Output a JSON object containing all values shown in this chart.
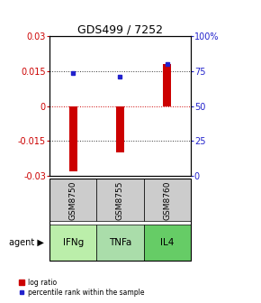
{
  "title": "GDS499 / 7252",
  "categories": [
    "IFNg",
    "TNFa",
    "IL4"
  ],
  "gsm_labels": [
    "GSM8750",
    "GSM8755",
    "GSM8760"
  ],
  "log_ratios": [
    -0.028,
    -0.02,
    0.018
  ],
  "percentile_ranks": [
    74,
    71,
    80
  ],
  "ylim_left": [
    -0.03,
    0.03
  ],
  "ylim_right": [
    0,
    100
  ],
  "yticks_left": [
    -0.03,
    -0.015,
    0,
    0.015,
    0.03
  ],
  "yticks_right": [
    0,
    25,
    50,
    75,
    100
  ],
  "ytick_labels_right": [
    "0",
    "25",
    "50",
    "75",
    "100%"
  ],
  "bar_color": "#cc0000",
  "dot_color": "#2222cc",
  "agent_label": "agent",
  "cell_color_gsm": "#cccccc",
  "cell_color_agent_ifng": "#bbeeaa",
  "cell_color_agent_tnfa": "#aaddaa",
  "cell_color_agent_il4": "#66cc66",
  "legend_bar_label": "log ratio",
  "legend_dot_label": "percentile rank within the sample",
  "bar_width": 0.18
}
